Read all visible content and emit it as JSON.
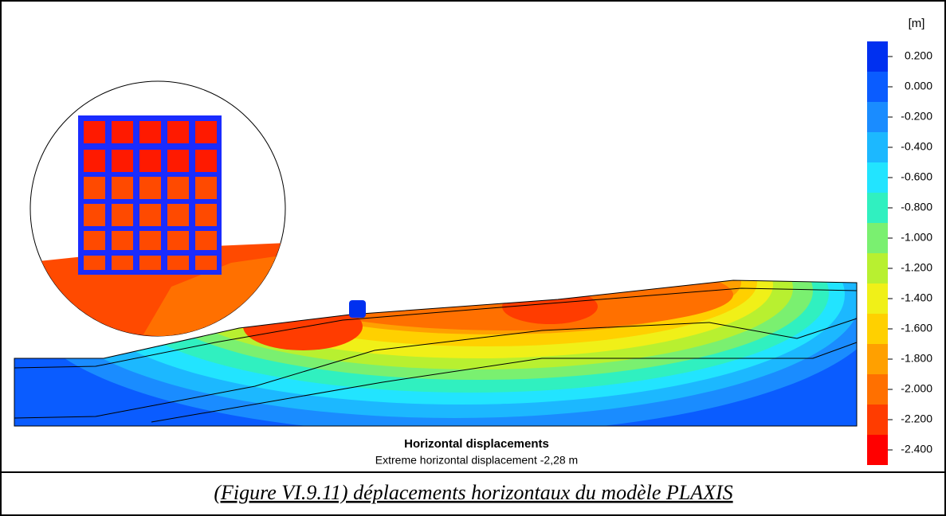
{
  "figure": {
    "title": "Horizontal displacements",
    "subtitle": "Extreme horizontal displacement -2,28 m",
    "caption": "(Figure VI.9.11) déplacements horizontaux du modèle PLAXIS"
  },
  "legend": {
    "unit": "[m]",
    "labels": [
      "0.200",
      "0.000",
      "-0.200",
      "-0.400",
      "-0.600",
      "-0.800",
      "-1.000",
      "-1.200",
      "-1.400",
      "-1.600",
      "-1.800",
      "-2.000",
      "-2.200",
      "-2.400"
    ],
    "colors": [
      "#0030f0",
      "#0a5cff",
      "#1a8cff",
      "#1cb8ff",
      "#22e4ff",
      "#30f0c0",
      "#7af070",
      "#b8f030",
      "#f0f018",
      "#ffd000",
      "#ffa000",
      "#ff7000",
      "#ff3c00",
      "#ff0000"
    ]
  }
}
